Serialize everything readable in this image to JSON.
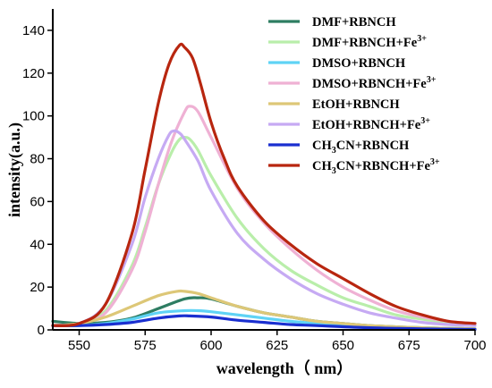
{
  "chart_data": {
    "type": "line",
    "title": "",
    "xlabel": "wavelength（ nm）",
    "ylabel": "intensity(a.u.)",
    "xlim": [
      540,
      700
    ],
    "ylim": [
      0,
      150
    ],
    "xticks": [
      550,
      575,
      600,
      625,
      650,
      675,
      700
    ],
    "yticks": [
      0,
      20,
      40,
      60,
      80,
      100,
      120,
      140
    ],
    "grid": false,
    "legend_position": "top-right",
    "series": [
      {
        "name": "DMF+RBNCH",
        "color": "#2e7d62",
        "points": [
          [
            540,
            4
          ],
          [
            550,
            3
          ],
          [
            560,
            3.5
          ],
          [
            570,
            5.5
          ],
          [
            580,
            10
          ],
          [
            590,
            14.5
          ],
          [
            595,
            15
          ],
          [
            600,
            14.5
          ],
          [
            610,
            11
          ],
          [
            620,
            8
          ],
          [
            630,
            6
          ],
          [
            640,
            4
          ],
          [
            650,
            3
          ],
          [
            660,
            2
          ],
          [
            680,
            1
          ],
          [
            700,
            0.5
          ]
        ]
      },
      {
        "name": "DMF+RBNCH+Fe",
        "sup": "3+",
        "color": "#b9eeaa",
        "points": [
          [
            540,
            2
          ],
          [
            550,
            3
          ],
          [
            560,
            9
          ],
          [
            570,
            30
          ],
          [
            575,
            48
          ],
          [
            580,
            68
          ],
          [
            585,
            83
          ],
          [
            588,
            89
          ],
          [
            590,
            90
          ],
          [
            592,
            89
          ],
          [
            595,
            84
          ],
          [
            600,
            72
          ],
          [
            610,
            52
          ],
          [
            620,
            38
          ],
          [
            630,
            28
          ],
          [
            640,
            21
          ],
          [
            650,
            15
          ],
          [
            660,
            11
          ],
          [
            670,
            7
          ],
          [
            680,
            5
          ],
          [
            690,
            3.5
          ],
          [
            700,
            3
          ]
        ]
      },
      {
        "name": "DMSO+RBNCH",
        "color": "#5fd3f5",
        "points": [
          [
            540,
            2
          ],
          [
            550,
            2
          ],
          [
            560,
            3
          ],
          [
            570,
            5
          ],
          [
            580,
            8
          ],
          [
            590,
            9
          ],
          [
            595,
            9
          ],
          [
            600,
            8.5
          ],
          [
            610,
            7
          ],
          [
            620,
            5.5
          ],
          [
            630,
            4
          ],
          [
            640,
            3
          ],
          [
            650,
            2
          ],
          [
            660,
            1.5
          ],
          [
            680,
            1
          ],
          [
            700,
            0.5
          ]
        ]
      },
      {
        "name": "DMSO+RBNCH+Fe",
        "sup": "3+",
        "color": "#efb1d4",
        "points": [
          [
            540,
            2
          ],
          [
            550,
            3
          ],
          [
            560,
            8
          ],
          [
            570,
            28
          ],
          [
            575,
            46
          ],
          [
            580,
            68
          ],
          [
            585,
            88
          ],
          [
            590,
            102
          ],
          [
            592,
            104.5
          ],
          [
            595,
            102
          ],
          [
            600,
            90
          ],
          [
            610,
            66
          ],
          [
            620,
            50
          ],
          [
            630,
            38
          ],
          [
            640,
            28
          ],
          [
            650,
            20
          ],
          [
            660,
            14
          ],
          [
            670,
            9
          ],
          [
            680,
            6
          ],
          [
            690,
            4
          ],
          [
            700,
            3
          ]
        ]
      },
      {
        "name": "EtOH+RBNCH",
        "color": "#ddc777",
        "points": [
          [
            540,
            2
          ],
          [
            550,
            3
          ],
          [
            560,
            6
          ],
          [
            570,
            11
          ],
          [
            580,
            16
          ],
          [
            587,
            18
          ],
          [
            590,
            18
          ],
          [
            595,
            17
          ],
          [
            600,
            15
          ],
          [
            610,
            11
          ],
          [
            620,
            8
          ],
          [
            630,
            6
          ],
          [
            640,
            4
          ],
          [
            650,
            3
          ],
          [
            660,
            2
          ],
          [
            680,
            1
          ],
          [
            700,
            0.5
          ]
        ]
      },
      {
        "name": "EtOH+RBNCH+Fe",
        "sup": "3+",
        "color": "#c6aaf3",
        "points": [
          [
            540,
            2
          ],
          [
            550,
            3
          ],
          [
            560,
            12
          ],
          [
            570,
            40
          ],
          [
            575,
            62
          ],
          [
            580,
            80
          ],
          [
            584,
            91
          ],
          [
            586,
            93
          ],
          [
            588,
            92
          ],
          [
            590,
            89
          ],
          [
            595,
            79
          ],
          [
            600,
            65
          ],
          [
            610,
            45
          ],
          [
            620,
            33
          ],
          [
            630,
            24
          ],
          [
            640,
            17
          ],
          [
            650,
            12
          ],
          [
            660,
            8
          ],
          [
            670,
            5.5
          ],
          [
            680,
            3.5
          ],
          [
            690,
            2.5
          ],
          [
            700,
            2
          ]
        ]
      },
      {
        "name": "CH",
        "sub": "3",
        "tail": "CN+RBNCH",
        "color": "#1a2fd0",
        "points": [
          [
            540,
            2
          ],
          [
            550,
            2
          ],
          [
            560,
            2.5
          ],
          [
            570,
            3.5
          ],
          [
            580,
            5.5
          ],
          [
            588,
            6.5
          ],
          [
            592,
            6.5
          ],
          [
            600,
            6
          ],
          [
            610,
            4.5
          ],
          [
            620,
            3.5
          ],
          [
            630,
            2.5
          ],
          [
            640,
            2
          ],
          [
            660,
            1
          ],
          [
            680,
            0.5
          ],
          [
            700,
            0.2
          ]
        ]
      },
      {
        "name": "CH",
        "sub": "3",
        "tail": "CN+RBNCH+Fe",
        "sup": "3+",
        "color": "#b8260f",
        "points": [
          [
            540,
            2
          ],
          [
            550,
            3
          ],
          [
            560,
            12
          ],
          [
            570,
            45
          ],
          [
            575,
            75
          ],
          [
            580,
            106
          ],
          [
            584,
            124
          ],
          [
            588,
            133
          ],
          [
            590,
            132
          ],
          [
            593,
            127
          ],
          [
            596,
            115
          ],
          [
            600,
            97
          ],
          [
            605,
            80
          ],
          [
            610,
            67
          ],
          [
            620,
            51
          ],
          [
            630,
            40
          ],
          [
            640,
            31
          ],
          [
            650,
            24
          ],
          [
            660,
            17
          ],
          [
            670,
            11
          ],
          [
            680,
            7
          ],
          [
            690,
            4
          ],
          [
            700,
            3
          ]
        ]
      }
    ]
  }
}
